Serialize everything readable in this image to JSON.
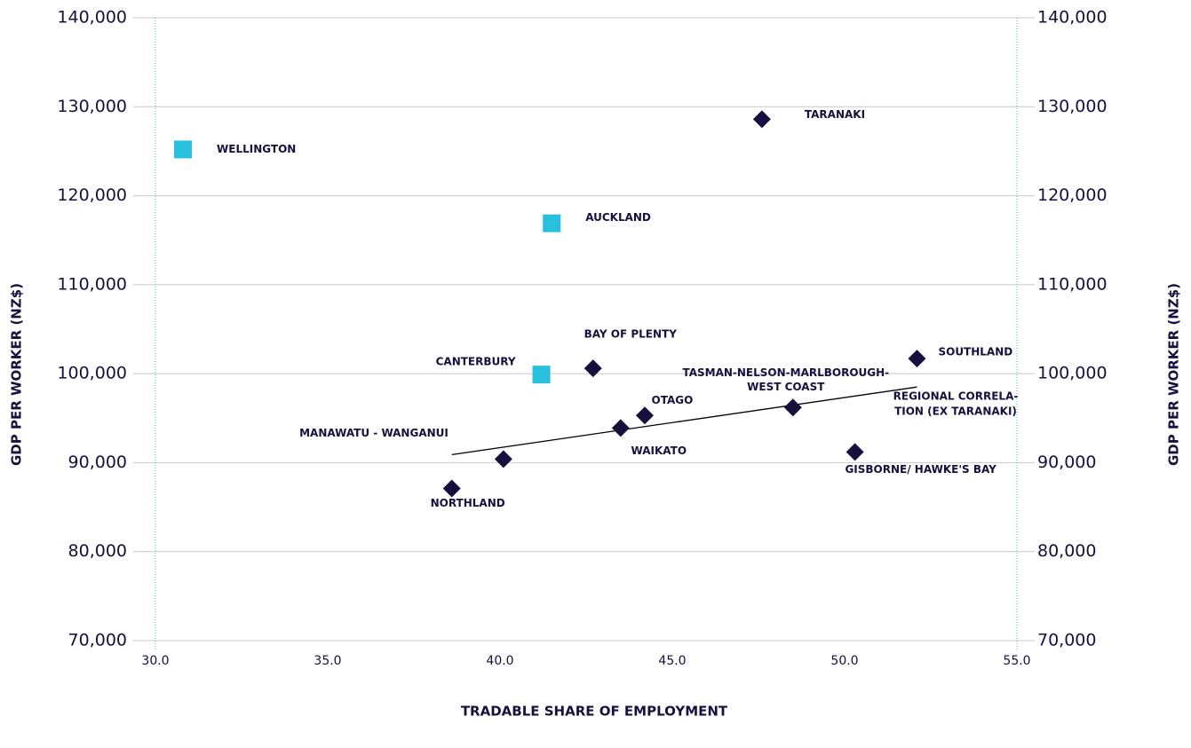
{
  "chart_data": {
    "type": "scatter",
    "xlabel": "TRADABLE SHARE OF EMPLOYMENT",
    "ylabel": "GDP PER WORKER (NZ$)",
    "y2label": "GDP PER WORKER (NZ$)",
    "xlim": [
      30,
      55
    ],
    "ylim": [
      70000,
      140000
    ],
    "y2lim": [
      70000,
      140000
    ],
    "xticks": [
      {
        "value": 30,
        "label": "30.0"
      },
      {
        "value": 35,
        "label": "35.0"
      },
      {
        "value": 40,
        "label": "40.0"
      },
      {
        "value": 45,
        "label": "45.0"
      },
      {
        "value": 50,
        "label": "50.0"
      },
      {
        "value": 55,
        "label": "55.0"
      }
    ],
    "yticks": [
      {
        "value": 70000,
        "label": "70,000"
      },
      {
        "value": 80000,
        "label": "80,000"
      },
      {
        "value": 90000,
        "label": "90,000"
      },
      {
        "value": 100000,
        "label": "100,000"
      },
      {
        "value": 110000,
        "label": "110,000"
      },
      {
        "value": 120000,
        "label": "120,000"
      },
      {
        "value": 130000,
        "label": "130,000"
      },
      {
        "value": 140000,
        "label": "140,000"
      }
    ],
    "y2ticks": [
      {
        "value": 70000,
        "label": "70,000"
      },
      {
        "value": 80000,
        "label": "80,000"
      },
      {
        "value": 90000,
        "label": "90,000"
      },
      {
        "value": 100000,
        "label": "100,000"
      },
      {
        "value": 110000,
        "label": "110,000"
      },
      {
        "value": 120000,
        "label": "120,000"
      },
      {
        "value": 130000,
        "label": "130,000"
      },
      {
        "value": 140000,
        "label": "140,000"
      }
    ],
    "grid": true,
    "series": [
      {
        "marker": "square",
        "color": "#29c0de",
        "x": [
          30.8,
          41.5,
          41.2
        ],
        "y": [
          125200,
          116900,
          99900
        ],
        "labels": [
          [
            "WELLINGTON"
          ],
          [
            "AUCKLAND"
          ],
          [
            "CANTERBURY"
          ]
        ]
      },
      {
        "marker": "diamond",
        "color": "#16103f",
        "x": [
          47.6,
          42.7,
          52.1,
          48.5,
          44.2,
          43.5,
          40.1,
          38.6,
          50.3
        ],
        "y": [
          128600,
          100600,
          101700,
          96200,
          95300,
          93900,
          90400,
          87100,
          91200
        ],
        "labels": [
          [
            "TARANAKI"
          ],
          [
            "BAY OF PLENTY"
          ],
          [
            "SOUTHLAND"
          ],
          [
            "TASMAN-NELSON-MARLBOROUGH-",
            "WEST COAST"
          ],
          [
            "OTAGO"
          ],
          [
            "WAIKATO"
          ],
          [
            "MANAWATU - WANGANUI"
          ],
          [
            "NORTHLAND"
          ],
          [
            "GISBORNE/ HAWKE'S BAY"
          ]
        ]
      }
    ],
    "trendline": {
      "color": "#000000",
      "x": [
        38.6,
        52.1
      ],
      "y": [
        90900,
        98500
      ],
      "label": [
        "REGIONAL CORRELA-",
        "TION (EX TARANAKI)"
      ]
    }
  }
}
